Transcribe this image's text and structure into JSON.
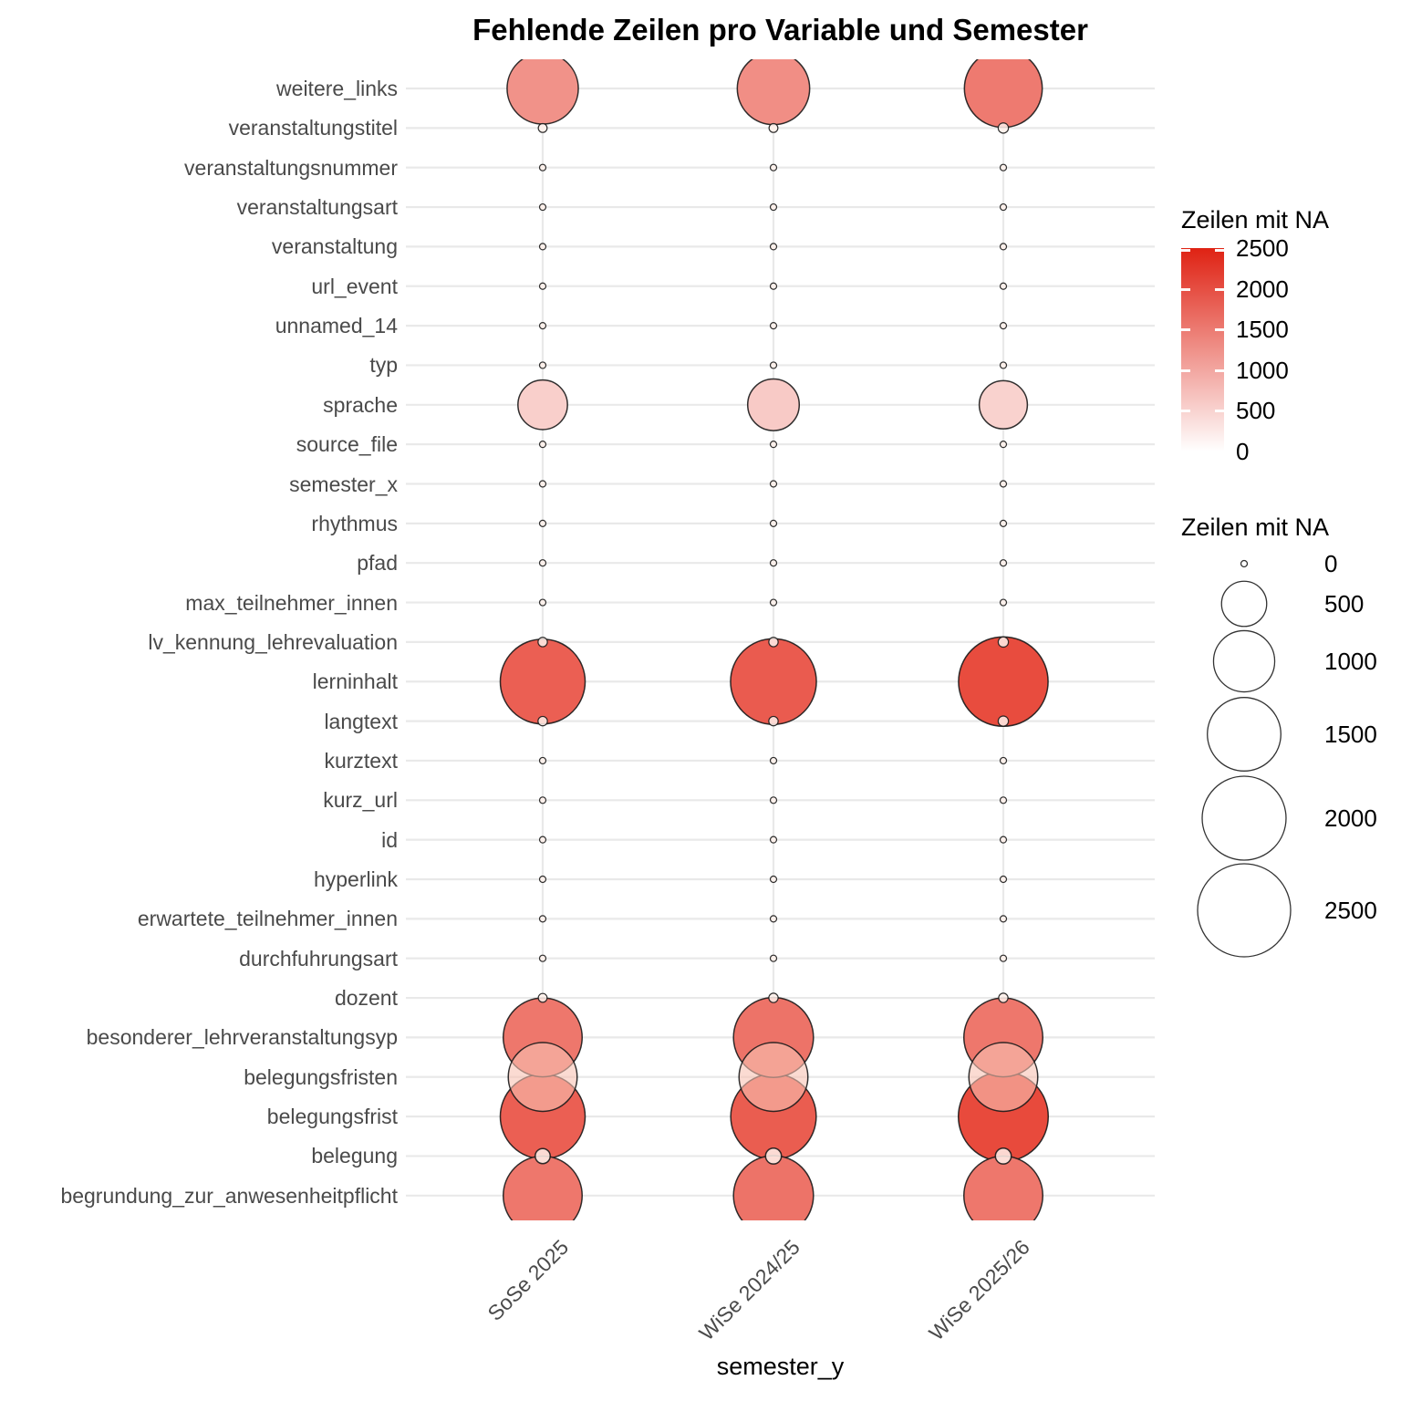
{
  "title": "Fehlende Zeilen pro Variable und Semester",
  "chart_data": {
    "type": "scatter",
    "subtype": "bubble-matrix",
    "title": "Fehlende Zeilen pro Variable und Semester",
    "xlabel": "semester_y",
    "ylabel": "",
    "x_categories": [
      "SoSe 2025",
      "WiSe 2024/25",
      "WiSe 2025/26"
    ],
    "value_name": "Zeilen mit NA",
    "value_range": [
      0,
      2500
    ],
    "grid": true,
    "rows": [
      {
        "variable": "weitere_links",
        "values": [
          1400,
          1450,
          1700
        ]
      },
      {
        "variable": "veranstaltungstitel",
        "values": [
          2,
          2,
          5
        ]
      },
      {
        "variable": "veranstaltungsnummer",
        "values": [
          0,
          0,
          0
        ]
      },
      {
        "variable": "veranstaltungsart",
        "values": [
          0,
          0,
          0
        ]
      },
      {
        "variable": "veranstaltung",
        "values": [
          0,
          0,
          0
        ]
      },
      {
        "variable": "url_event",
        "values": [
          0,
          0,
          0
        ]
      },
      {
        "variable": "unnamed_14",
        "values": [
          0,
          0,
          0
        ]
      },
      {
        "variable": "typ",
        "values": [
          0,
          0,
          0
        ]
      },
      {
        "variable": "sprache",
        "values": [
          620,
          680,
          580
        ]
      },
      {
        "variable": "source_file",
        "values": [
          0,
          0,
          0
        ]
      },
      {
        "variable": "semester_x",
        "values": [
          0,
          0,
          0
        ]
      },
      {
        "variable": "rhythmus",
        "values": [
          0,
          0,
          0
        ]
      },
      {
        "variable": "pfad",
        "values": [
          0,
          0,
          0
        ]
      },
      {
        "variable": "max_teilnehmer_innen",
        "values": [
          0,
          0,
          0
        ]
      },
      {
        "variable": "lv_kennung_lehrevaluation",
        "values": [
          3,
          3,
          5
        ]
      },
      {
        "variable": "lerninhalt",
        "values": [
          2050,
          2100,
          2300
        ]
      },
      {
        "variable": "langtext",
        "values": [
          3,
          3,
          5
        ]
      },
      {
        "variable": "kurztext",
        "values": [
          0,
          0,
          0
        ]
      },
      {
        "variable": "kurz_url",
        "values": [
          0,
          0,
          0
        ]
      },
      {
        "variable": "id",
        "values": [
          0,
          0,
          0
        ]
      },
      {
        "variable": "hyperlink",
        "values": [
          0,
          0,
          0
        ]
      },
      {
        "variable": "erwartete_teilnehmer_innen",
        "values": [
          0,
          0,
          0
        ]
      },
      {
        "variable": "durchfuhrungsart",
        "values": [
          0,
          0,
          0
        ]
      },
      {
        "variable": "dozent",
        "values": [
          2,
          3,
          3
        ]
      },
      {
        "variable": "besonderer_lehrveranstaltungsyp",
        "values": [
          1750,
          1800,
          1750
        ]
      },
      {
        "variable": "belegungsfristen",
        "values": [
          1300,
          1300,
          1300
        ],
        "fill_override": "rgba(249,195,180,0.6)"
      },
      {
        "variable": "belegungsfrist",
        "values": [
          2050,
          2080,
          2320
        ]
      },
      {
        "variable": "belegung",
        "values": [
          25,
          30,
          30
        ]
      },
      {
        "variable": "begrundung_zur_anwesenheitpflicht",
        "values": [
          1750,
          1800,
          1750
        ]
      }
    ],
    "color_legend": {
      "title": "Zeilen mit NA",
      "ticks": [
        0,
        500,
        1000,
        1500,
        2000,
        2500
      ]
    },
    "size_legend": {
      "title": "Zeilen mit NA",
      "ticks": [
        0,
        500,
        1000,
        1500,
        2000,
        2500
      ]
    },
    "colors": {
      "point_low": "#FFFFFF",
      "point_high": "#E63C2D",
      "bar_low": "#FFFFFF",
      "bar_high": "#DF2213",
      "gridline": "#E9E9E9",
      "axis_text": "#4A4A4A",
      "point_stroke": "#1A1A1A",
      "small_point_fill": "rgba(255,241,235,0.85)"
    }
  }
}
